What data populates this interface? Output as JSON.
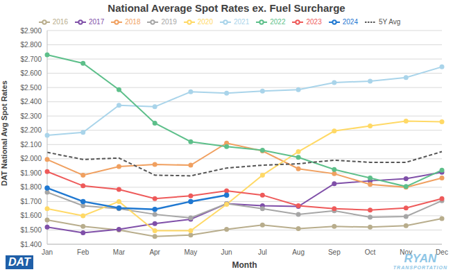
{
  "chart_data": {
    "type": "line",
    "title": "National Average Spot Rates ex. Fuel Surcharge",
    "x_label": "Month",
    "y_label": "DAT National Avg Spot Rates",
    "annotations": [
      "DAT",
      "RYAN",
      "TRANSPORTATION"
    ],
    "categories": [
      "Jan",
      "Feb",
      "Mar",
      "Apr",
      "May",
      "Jun",
      "Jul",
      "Aug",
      "Sep",
      "Oct",
      "Nov",
      "Dec"
    ],
    "series": [
      {
        "name": "2016",
        "color": "#b8ad8c",
        "marker": "circle",
        "line_style": "solid",
        "values": [
          1.57,
          1.525,
          1.5,
          1.455,
          1.465,
          1.505,
          1.535,
          1.51,
          1.525,
          1.52,
          1.53,
          1.58
        ]
      },
      {
        "name": "2017",
        "color": "#7f4fa8",
        "marker": "circle",
        "line_style": "solid",
        "values": [
          1.52,
          1.48,
          1.505,
          1.545,
          1.575,
          1.685,
          1.67,
          1.665,
          1.825,
          1.845,
          1.86,
          1.905
        ]
      },
      {
        "name": "2018",
        "color": "#f0a060",
        "marker": "circle",
        "line_style": "solid",
        "values": [
          1.995,
          1.885,
          1.945,
          1.96,
          1.955,
          2.11,
          2.055,
          1.93,
          1.895,
          1.82,
          1.8,
          1.865
        ]
      },
      {
        "name": "2019",
        "color": "#a6a6a6",
        "marker": "circle",
        "line_style": "solid",
        "values": [
          1.765,
          1.67,
          1.65,
          1.61,
          1.585,
          1.685,
          1.65,
          1.61,
          1.635,
          1.59,
          1.595,
          1.705
        ]
      },
      {
        "name": "2020",
        "color": "#ffd966",
        "marker": "circle",
        "line_style": "solid",
        "values": [
          1.65,
          1.6,
          1.7,
          1.495,
          1.495,
          1.68,
          1.885,
          2.05,
          2.195,
          2.23,
          2.265,
          2.26
        ]
      },
      {
        "name": "2021",
        "color": "#a9d4ea",
        "marker": "circle",
        "line_style": "solid",
        "values": [
          2.165,
          2.185,
          2.375,
          2.365,
          2.47,
          2.46,
          2.475,
          2.485,
          2.535,
          2.545,
          2.57,
          2.645
        ]
      },
      {
        "name": "2022",
        "color": "#5dbf8a",
        "marker": "circle",
        "line_style": "solid",
        "values": [
          2.73,
          2.67,
          2.485,
          2.25,
          2.12,
          2.085,
          2.06,
          2.01,
          1.925,
          1.865,
          1.805,
          1.92
        ]
      },
      {
        "name": "2023",
        "color": "#ee5a5a",
        "marker": "circle",
        "line_style": "solid",
        "values": [
          1.91,
          1.81,
          1.785,
          1.72,
          1.74,
          1.775,
          1.745,
          1.67,
          1.65,
          1.64,
          1.655,
          1.72
        ]
      },
      {
        "name": "2024",
        "color": "#1f78d1",
        "marker": "circle",
        "line_style": "solid",
        "values": [
          1.795,
          1.7,
          1.655,
          1.645,
          1.7,
          1.745,
          null,
          null,
          null,
          null,
          null,
          null
        ]
      },
      {
        "name": "5Y Avg",
        "color": "#555555",
        "marker": "none",
        "line_style": "dashed",
        "values": [
          2.045,
          1.995,
          2.005,
          1.885,
          1.88,
          1.935,
          1.955,
          1.965,
          1.99,
          1.975,
          1.975,
          2.05
        ]
      }
    ],
    "ylim": [
      1.4,
      2.9
    ],
    "yticks": [
      {
        "value": 1.4,
        "label": "$1.400"
      },
      {
        "value": 1.5,
        "label": "$1.500"
      },
      {
        "value": 1.6,
        "label": "$1.600"
      },
      {
        "value": 1.7,
        "label": "$1.700"
      },
      {
        "value": 1.8,
        "label": "$1.800"
      },
      {
        "value": 1.9,
        "label": "$1.900"
      },
      {
        "value": 2.0,
        "label": "$2.000"
      },
      {
        "value": 2.1,
        "label": "$2.100"
      },
      {
        "value": 2.2,
        "label": "$2.200"
      },
      {
        "value": 2.3,
        "label": "$2.300"
      },
      {
        "value": 2.4,
        "label": "$2.400"
      },
      {
        "value": 2.5,
        "label": "$2.500"
      },
      {
        "value": 2.6,
        "label": "$2.600"
      },
      {
        "value": 2.7,
        "label": "$2.700"
      },
      {
        "value": 2.8,
        "label": "$2.800"
      },
      {
        "value": 2.9,
        "label": "$2.900"
      }
    ],
    "grid": true,
    "legend": "top"
  }
}
